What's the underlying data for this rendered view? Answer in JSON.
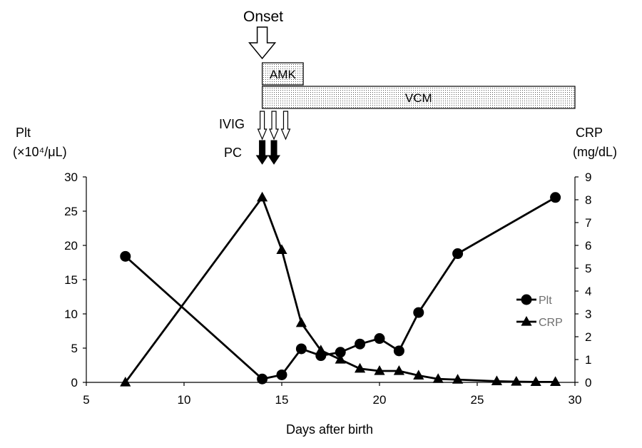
{
  "chart_data": {
    "type": "line",
    "xlabel": "Days after birth",
    "xlim": [
      5,
      30
    ],
    "xticks": [
      5,
      10,
      15,
      20,
      25,
      30
    ],
    "y_left": {
      "label_line1": "Plt",
      "label_line2": "(×10⁴/μL)",
      "lim": [
        0,
        30
      ],
      "ticks": [
        0,
        5,
        10,
        15,
        20,
        25,
        30
      ]
    },
    "y_right": {
      "label_line1": "CRP",
      "label_line2": "(mg/dL)",
      "lim": [
        0,
        9
      ],
      "ticks": [
        0,
        1,
        2,
        3,
        4,
        5,
        6,
        7,
        8,
        9
      ]
    },
    "series": [
      {
        "name": "Plt",
        "axis": "left",
        "marker": "circle",
        "x": [
          7,
          14,
          15,
          16,
          17,
          18,
          19,
          20,
          21,
          22,
          24,
          29
        ],
        "y": [
          18.4,
          0.5,
          1.1,
          4.9,
          3.9,
          4.4,
          5.6,
          6.4,
          4.6,
          10.2,
          18.8,
          27.0
        ]
      },
      {
        "name": "CRP",
        "axis": "right",
        "marker": "triangle",
        "x": [
          7,
          14,
          15,
          16,
          17,
          18,
          19,
          20,
          21,
          22,
          23,
          24,
          26,
          27,
          28,
          29
        ],
        "y": [
          0.0,
          8.1,
          5.8,
          2.6,
          1.4,
          1.0,
          0.6,
          0.5,
          0.5,
          0.3,
          0.15,
          0.12,
          0.05,
          0.03,
          0.02,
          0.02
        ]
      }
    ],
    "legend": {
      "placement": "right",
      "items": [
        "Plt",
        "CRP"
      ]
    },
    "annotations": {
      "onset": {
        "label": "Onset",
        "day": 14
      },
      "treatments": [
        {
          "label": "AMK",
          "start": 14,
          "end": 16.1
        },
        {
          "label": "VCM",
          "start": 14,
          "end": 30
        }
      ],
      "ivig": {
        "label": "IVIG",
        "days": [
          14,
          14.6,
          15.2
        ]
      },
      "pc": {
        "label": "PC",
        "days": [
          14,
          14.6
        ]
      }
    }
  }
}
